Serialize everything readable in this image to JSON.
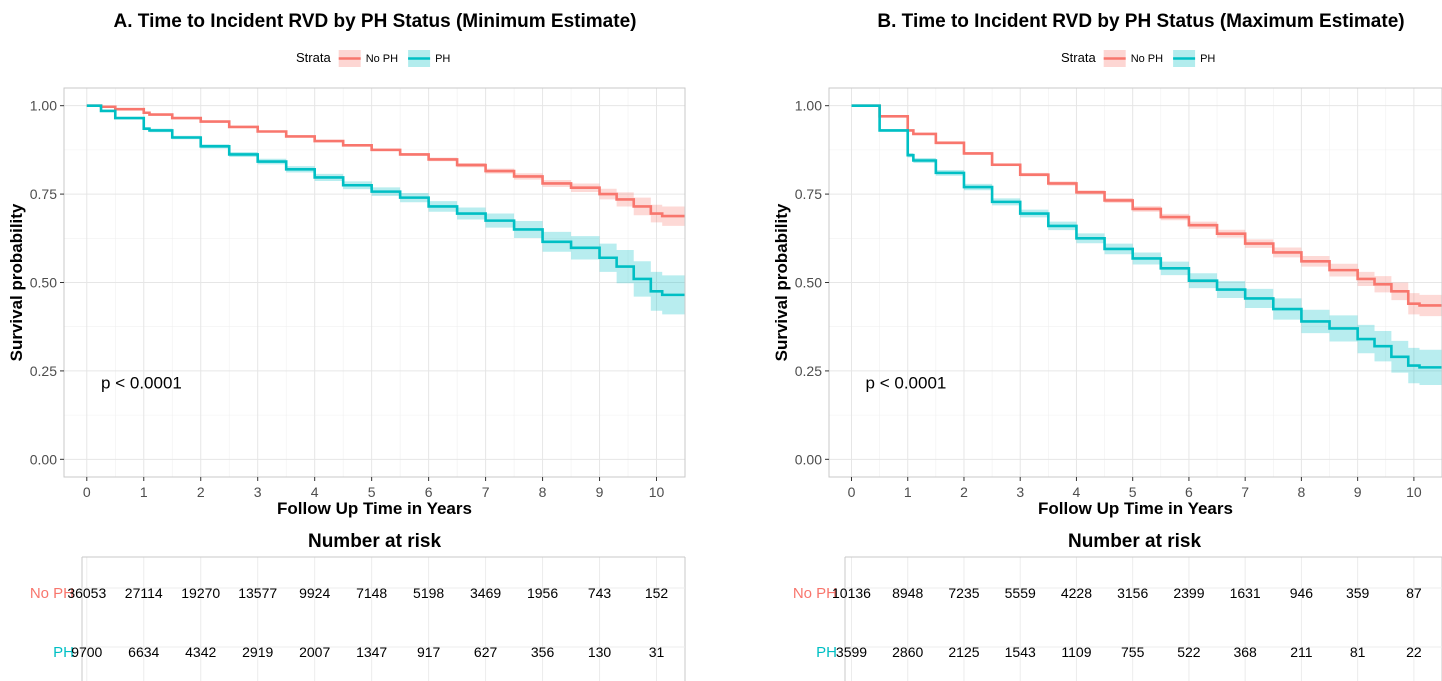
{
  "chart_data": [
    {
      "type": "line",
      "title": "A. Time to Incident RVD by PH Status (Minimum Estimate)",
      "xlabel": "Follow Up Time in Years",
      "ylabel": "Survival probability",
      "xlim": [
        -0.4,
        10.5
      ],
      "ylim": [
        -0.05,
        1.05
      ],
      "xticks": [
        0,
        1,
        2,
        3,
        4,
        5,
        6,
        7,
        8,
        9,
        10
      ],
      "yticks": [
        0.0,
        0.25,
        0.5,
        0.75,
        1.0
      ],
      "ytick_labels": [
        "0.00",
        "0.25",
        "0.50",
        "0.75",
        "1.00"
      ],
      "grid": true,
      "legend": {
        "title": "Strata",
        "position": "top"
      },
      "annotation": "p < 0.0001",
      "series": [
        {
          "name": "No PH",
          "color": "#F8766D",
          "x": [
            0,
            0.25,
            0.5,
            1,
            1.1,
            1.5,
            2,
            2.5,
            3,
            3.5,
            4,
            4.5,
            5,
            5.5,
            6,
            6.5,
            7,
            7.5,
            8,
            8.5,
            9,
            9.3,
            9.6,
            9.9,
            10.1,
            10.5
          ],
          "y": [
            1.0,
            0.997,
            0.99,
            0.98,
            0.975,
            0.965,
            0.955,
            0.94,
            0.927,
            0.913,
            0.9,
            0.888,
            0.875,
            0.862,
            0.848,
            0.832,
            0.815,
            0.8,
            0.78,
            0.768,
            0.75,
            0.735,
            0.715,
            0.695,
            0.688,
            0.688
          ],
          "lower": [
            1.0,
            0.996,
            0.989,
            0.979,
            0.974,
            0.963,
            0.953,
            0.938,
            0.925,
            0.911,
            0.897,
            0.885,
            0.871,
            0.858,
            0.843,
            0.826,
            0.808,
            0.791,
            0.77,
            0.756,
            0.735,
            0.715,
            0.69,
            0.67,
            0.66,
            0.66
          ],
          "upper": [
            1.0,
            0.998,
            0.991,
            0.981,
            0.976,
            0.967,
            0.957,
            0.942,
            0.929,
            0.915,
            0.903,
            0.891,
            0.879,
            0.866,
            0.853,
            0.838,
            0.822,
            0.809,
            0.79,
            0.78,
            0.765,
            0.755,
            0.74,
            0.72,
            0.715,
            0.715
          ]
        },
        {
          "name": "PH",
          "color": "#00BFC4",
          "x": [
            0,
            0.25,
            0.5,
            1,
            1.1,
            1.5,
            2,
            2.5,
            3,
            3.5,
            4,
            4.5,
            5,
            5.5,
            6,
            6.5,
            7,
            7.5,
            8,
            8.5,
            9,
            9.3,
            9.6,
            9.9,
            10.1,
            10.5
          ],
          "y": [
            1.0,
            0.985,
            0.965,
            0.935,
            0.93,
            0.91,
            0.885,
            0.862,
            0.842,
            0.82,
            0.797,
            0.775,
            0.757,
            0.74,
            0.715,
            0.695,
            0.675,
            0.65,
            0.615,
            0.598,
            0.57,
            0.545,
            0.51,
            0.475,
            0.465,
            0.465
          ],
          "lower": [
            1.0,
            0.983,
            0.962,
            0.931,
            0.925,
            0.905,
            0.879,
            0.855,
            0.834,
            0.811,
            0.787,
            0.764,
            0.745,
            0.727,
            0.7,
            0.678,
            0.655,
            0.626,
            0.587,
            0.565,
            0.53,
            0.498,
            0.46,
            0.42,
            0.41,
            0.41
          ],
          "upper": [
            1.0,
            0.987,
            0.968,
            0.939,
            0.935,
            0.915,
            0.891,
            0.869,
            0.85,
            0.829,
            0.807,
            0.786,
            0.769,
            0.753,
            0.73,
            0.712,
            0.695,
            0.674,
            0.643,
            0.631,
            0.61,
            0.592,
            0.56,
            0.53,
            0.52,
            0.52
          ]
        }
      ],
      "risk_table": {
        "title": "Number at risk",
        "times": [
          0,
          1,
          2,
          3,
          4,
          5,
          6,
          7,
          8,
          9,
          10
        ],
        "rows": [
          {
            "label": "No PH",
            "color": "#F8766D",
            "values": [
              "36053",
              "27114",
              "19270",
              "13577",
              "9924",
              "7148",
              "5198",
              "3469",
              "1956",
              "743",
              "152"
            ]
          },
          {
            "label": "PH",
            "color": "#00BFC4",
            "values": [
              "9700",
              "6634",
              "4342",
              "2919",
              "2007",
              "1347",
              "917",
              "627",
              "356",
              "130",
              "31"
            ]
          }
        ]
      }
    },
    {
      "type": "line",
      "title": "B. Time to Incident RVD by PH Status (Maximum Estimate)",
      "xlabel": "Follow Up Time in Years",
      "ylabel": "Survival probability",
      "xlim": [
        -0.4,
        10.5
      ],
      "ylim": [
        -0.05,
        1.05
      ],
      "xticks": [
        0,
        1,
        2,
        3,
        4,
        5,
        6,
        7,
        8,
        9,
        10
      ],
      "yticks": [
        0.0,
        0.25,
        0.5,
        0.75,
        1.0
      ],
      "ytick_labels": [
        "0.00",
        "0.25",
        "0.50",
        "0.75",
        "1.00"
      ],
      "grid": true,
      "legend": {
        "title": "Strata",
        "position": "top"
      },
      "annotation": "p < 0.0001",
      "series": [
        {
          "name": "No PH",
          "color": "#F8766D",
          "x": [
            0,
            0.25,
            0.5,
            1,
            1.1,
            1.5,
            2,
            2.5,
            3,
            3.5,
            4,
            4.5,
            5,
            5.5,
            6,
            6.5,
            7,
            7.5,
            8,
            8.5,
            9,
            9.3,
            9.6,
            9.9,
            10.1,
            10.5
          ],
          "y": [
            1.0,
            1.0,
            0.97,
            0.93,
            0.92,
            0.895,
            0.865,
            0.833,
            0.805,
            0.78,
            0.755,
            0.732,
            0.708,
            0.685,
            0.662,
            0.638,
            0.61,
            0.585,
            0.56,
            0.535,
            0.51,
            0.495,
            0.475,
            0.44,
            0.435,
            0.435
          ],
          "lower": [
            1.0,
            1.0,
            0.968,
            0.927,
            0.917,
            0.891,
            0.861,
            0.829,
            0.8,
            0.774,
            0.749,
            0.725,
            0.7,
            0.676,
            0.652,
            0.627,
            0.598,
            0.571,
            0.545,
            0.517,
            0.49,
            0.472,
            0.45,
            0.41,
            0.405,
            0.405
          ],
          "upper": [
            1.0,
            1.0,
            0.972,
            0.933,
            0.923,
            0.899,
            0.869,
            0.837,
            0.81,
            0.786,
            0.761,
            0.739,
            0.716,
            0.694,
            0.672,
            0.649,
            0.622,
            0.599,
            0.575,
            0.553,
            0.53,
            0.518,
            0.5,
            0.47,
            0.465,
            0.465
          ]
        },
        {
          "name": "PH",
          "color": "#00BFC4",
          "x": [
            0,
            0.25,
            0.5,
            1,
            1.1,
            1.5,
            2,
            2.5,
            3,
            3.5,
            4,
            4.5,
            5,
            5.5,
            6,
            6.5,
            7,
            7.5,
            8,
            8.5,
            9,
            9.3,
            9.6,
            9.9,
            10.1,
            10.5
          ],
          "y": [
            1.0,
            1.0,
            0.93,
            0.86,
            0.845,
            0.81,
            0.77,
            0.728,
            0.695,
            0.66,
            0.625,
            0.595,
            0.568,
            0.54,
            0.505,
            0.48,
            0.455,
            0.425,
            0.39,
            0.37,
            0.34,
            0.32,
            0.29,
            0.265,
            0.26,
            0.26
          ],
          "lower": [
            1.0,
            1.0,
            0.926,
            0.854,
            0.838,
            0.802,
            0.761,
            0.718,
            0.684,
            0.648,
            0.611,
            0.58,
            0.551,
            0.521,
            0.484,
            0.456,
            0.428,
            0.395,
            0.357,
            0.333,
            0.3,
            0.277,
            0.245,
            0.215,
            0.21,
            0.21
          ],
          "upper": [
            1.0,
            1.0,
            0.934,
            0.866,
            0.852,
            0.818,
            0.779,
            0.738,
            0.706,
            0.672,
            0.639,
            0.61,
            0.585,
            0.559,
            0.526,
            0.504,
            0.482,
            0.455,
            0.423,
            0.407,
            0.38,
            0.363,
            0.335,
            0.315,
            0.31,
            0.31
          ]
        }
      ],
      "risk_table": {
        "title": "Number at risk",
        "times": [
          0,
          1,
          2,
          3,
          4,
          5,
          6,
          7,
          8,
          9,
          10
        ],
        "rows": [
          {
            "label": "No PH",
            "color": "#F8766D",
            "values": [
              "10136",
              "8948",
              "7235",
              "5559",
              "4228",
              "3156",
              "2399",
              "1631",
              "946",
              "359",
              "87"
            ]
          },
          {
            "label": "PH",
            "color": "#00BFC4",
            "values": [
              "3599",
              "2860",
              "2125",
              "1543",
              "1109",
              "755",
              "522",
              "368",
              "211",
              "81",
              "22"
            ]
          }
        ]
      }
    }
  ]
}
